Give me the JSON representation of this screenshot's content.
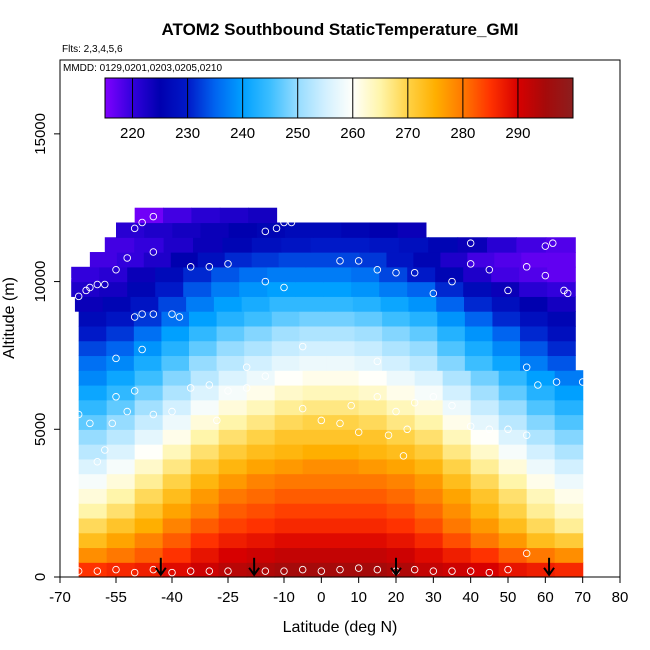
{
  "chart_data": {
    "type": "heatmap",
    "title": "ATOM2 Southbound StaticTemperature_GMI",
    "flights_label": "Flts: 2,3,4,5,6",
    "dates_label": "MMDD: 0129,0201,0203,0205,0210",
    "xlabel": "Latitude (deg N)",
    "ylabel": "Altitude (m)",
    "xlim": [
      -70,
      80
    ],
    "ylim": [
      0,
      17500
    ],
    "x_ticks": [
      -70,
      -55,
      -40,
      -25,
      -10,
      0,
      10,
      20,
      30,
      40,
      50,
      60,
      70,
      80
    ],
    "x_tick_labels": [
      "-70",
      "-55",
      "-40",
      "-25",
      "-10",
      "0",
      "10",
      "20",
      "30",
      "40",
      "50",
      "60",
      "70",
      "80"
    ],
    "y_ticks": [
      0,
      5000,
      10000,
      15000
    ],
    "y_tick_labels": [
      "0",
      "5000",
      "10000",
      "15000"
    ],
    "colorbar": {
      "range": [
        215,
        300
      ],
      "ticks": [
        220,
        230,
        240,
        250,
        260,
        270,
        280,
        290
      ],
      "tick_labels": [
        "220",
        "230",
        "240",
        "250",
        "260",
        "270",
        "280",
        "290"
      ]
    },
    "arrows_at_latitude": [
      -43,
      -18,
      20,
      61
    ],
    "layers": [
      {
        "alt_bottom": 0,
        "alt_top": 500,
        "lat_min": -65,
        "lat_max": 70,
        "temps": [
          285,
          286,
          287,
          289,
          291,
          293,
          294,
          295,
          295,
          295,
          295,
          294,
          292,
          291,
          290,
          288,
          287,
          286
        ]
      },
      {
        "alt_bottom": 500,
        "alt_top": 1000,
        "lat_min": -65,
        "lat_max": 70,
        "temps": [
          278,
          280,
          282,
          285,
          288,
          290,
          291,
          292,
          292,
          292,
          292,
          291,
          289,
          287,
          285,
          282,
          280,
          278
        ]
      },
      {
        "alt_bottom": 1000,
        "alt_top": 1500,
        "lat_min": -65,
        "lat_max": 70,
        "temps": [
          273,
          276,
          279,
          282,
          285,
          287,
          288,
          289,
          289,
          289,
          289,
          288,
          286,
          283,
          280,
          277,
          273,
          271
        ]
      },
      {
        "alt_bottom": 1500,
        "alt_top": 2000,
        "lat_min": -65,
        "lat_max": 70,
        "temps": [
          269,
          272,
          275,
          279,
          282,
          284,
          285,
          286,
          286,
          286,
          286,
          285,
          283,
          280,
          277,
          273,
          269,
          266
        ]
      },
      {
        "alt_bottom": 2000,
        "alt_top": 2500,
        "lat_min": -65,
        "lat_max": 70,
        "temps": [
          265,
          268,
          272,
          276,
          279,
          282,
          283,
          284,
          284,
          284,
          284,
          283,
          281,
          278,
          274,
          270,
          266,
          263
        ]
      },
      {
        "alt_bottom": 2500,
        "alt_top": 3000,
        "lat_min": -65,
        "lat_max": 70,
        "temps": [
          262,
          265,
          269,
          273,
          277,
          280,
          281,
          282,
          282,
          282,
          282,
          281,
          279,
          276,
          272,
          268,
          264,
          261
        ]
      },
      {
        "alt_bottom": 3000,
        "alt_top": 3500,
        "lat_min": -65,
        "lat_max": 70,
        "temps": [
          259,
          262,
          266,
          270,
          274,
          277,
          279,
          280,
          280,
          280,
          280,
          279,
          277,
          273,
          269,
          265,
          261,
          258
        ]
      },
      {
        "alt_bottom": 3500,
        "alt_top": 4000,
        "lat_min": -65,
        "lat_max": 70,
        "temps": [
          256,
          259,
          263,
          267,
          271,
          274,
          276,
          277,
          278,
          278,
          277,
          276,
          274,
          270,
          266,
          262,
          258,
          255
        ]
      },
      {
        "alt_bottom": 4000,
        "alt_top": 4500,
        "lat_min": -65,
        "lat_max": 70,
        "temps": [
          253,
          256,
          260,
          264,
          268,
          271,
          273,
          274,
          275,
          275,
          274,
          273,
          271,
          267,
          263,
          259,
          255,
          252
        ]
      },
      {
        "alt_bottom": 4500,
        "alt_top": 5000,
        "lat_min": -65,
        "lat_max": 70,
        "temps": [
          250,
          253,
          257,
          261,
          265,
          268,
          270,
          272,
          272,
          272,
          272,
          270,
          268,
          264,
          260,
          256,
          252,
          249
        ]
      },
      {
        "alt_bottom": 5000,
        "alt_top": 5500,
        "lat_min": -65,
        "lat_max": 70,
        "temps": [
          247,
          250,
          254,
          258,
          262,
          265,
          267,
          269,
          270,
          270,
          269,
          267,
          265,
          261,
          257,
          253,
          249,
          246
        ]
      },
      {
        "alt_bottom": 5500,
        "alt_top": 6000,
        "lat_min": -65,
        "lat_max": 70,
        "temps": [
          244,
          247,
          251,
          255,
          259,
          262,
          264,
          266,
          267,
          267,
          266,
          264,
          262,
          258,
          254,
          250,
          246,
          243
        ]
      },
      {
        "alt_bottom": 6000,
        "alt_top": 6500,
        "lat_min": -65,
        "lat_max": 70,
        "temps": [
          241,
          244,
          248,
          252,
          256,
          259,
          261,
          263,
          264,
          264,
          263,
          261,
          259,
          255,
          251,
          247,
          243,
          240
        ]
      },
      {
        "alt_bottom": 6500,
        "alt_top": 7000,
        "lat_min": -65,
        "lat_max": 70,
        "temps": [
          238,
          241,
          245,
          249,
          253,
          256,
          258,
          260,
          261,
          261,
          260,
          258,
          256,
          252,
          248,
          244,
          240,
          237
        ]
      },
      {
        "alt_bottom": 7000,
        "alt_top": 7500,
        "lat_min": -65,
        "lat_max": 68,
        "temps": [
          236,
          238,
          242,
          246,
          250,
          253,
          255,
          257,
          258,
          258,
          257,
          255,
          253,
          249,
          245,
          241,
          237,
          234
        ]
      },
      {
        "alt_bottom": 7500,
        "alt_top": 8000,
        "lat_min": -65,
        "lat_max": 68,
        "temps": [
          233,
          235,
          239,
          243,
          247,
          250,
          252,
          254,
          255,
          255,
          254,
          252,
          250,
          246,
          242,
          238,
          234,
          231
        ]
      },
      {
        "alt_bottom": 8000,
        "alt_top": 8500,
        "lat_min": -65,
        "lat_max": 68,
        "temps": [
          230,
          232,
          236,
          240,
          244,
          247,
          249,
          251,
          252,
          252,
          251,
          249,
          247,
          243,
          239,
          235,
          231,
          228
        ]
      },
      {
        "alt_bottom": 8500,
        "alt_top": 9000,
        "lat_min": -65,
        "lat_max": 68,
        "temps": [
          227,
          229,
          232,
          236,
          240,
          243,
          245,
          247,
          248,
          248,
          247,
          245,
          243,
          239,
          235,
          231,
          228,
          226
        ]
      },
      {
        "alt_bottom": 9000,
        "alt_top": 9500,
        "lat_min": -66,
        "lat_max": 68,
        "temps": [
          224,
          226,
          229,
          233,
          237,
          240,
          242,
          244,
          244,
          244,
          243,
          241,
          239,
          235,
          231,
          228,
          225,
          223
        ]
      },
      {
        "alt_bottom": 9500,
        "alt_top": 10000,
        "lat_min": -67,
        "lat_max": 68,
        "temps": [
          222,
          223,
          226,
          230,
          234,
          237,
          239,
          240,
          240,
          240,
          239,
          237,
          235,
          231,
          227,
          224,
          221,
          220
        ]
      },
      {
        "alt_bottom": 10000,
        "alt_top": 10500,
        "lat_min": -67,
        "lat_max": 68,
        "temps": [
          220,
          221,
          224,
          227,
          231,
          234,
          236,
          237,
          237,
          237,
          236,
          233,
          230,
          226,
          222,
          219,
          218,
          217
        ]
      },
      {
        "alt_bottom": 10500,
        "alt_top": 11000,
        "lat_min": -62,
        "lat_max": 68,
        "temps": [
          219,
          220,
          222,
          225,
          228,
          231,
          232,
          233,
          233,
          233,
          232,
          229,
          226,
          222,
          219,
          218,
          217,
          217
        ]
      },
      {
        "alt_bottom": 11000,
        "alt_top": 11500,
        "lat_min": -58,
        "lat_max": 68,
        "temps": [
          219,
          220,
          222,
          224,
          226,
          228,
          229,
          230,
          230,
          229,
          228,
          226,
          224,
          221,
          219,
          218
        ]
      },
      {
        "alt_bottom": 11500,
        "alt_top": 12000,
        "lat_min": -55,
        "lat_max": 28,
        "temps": [
          221,
          222,
          223,
          224,
          225,
          226,
          227,
          227,
          226,
          225,
          224
        ]
      },
      {
        "alt_bottom": 12000,
        "alt_top": 12500,
        "lat_min": -50,
        "lat_max": -12,
        "temps": [
          216,
          219,
          221,
          222,
          223
        ]
      }
    ],
    "observations": [
      [
        -65,
        200
      ],
      [
        -60,
        200
      ],
      [
        -55,
        250
      ],
      [
        -50,
        150
      ],
      [
        -45,
        250
      ],
      [
        -40,
        150
      ],
      [
        -35,
        200
      ],
      [
        -30,
        200
      ],
      [
        -25,
        200
      ],
      [
        -15,
        200
      ],
      [
        -10,
        200
      ],
      [
        -5,
        250
      ],
      [
        0,
        200
      ],
      [
        5,
        250
      ],
      [
        10,
        300
      ],
      [
        15,
        250
      ],
      [
        20,
        200
      ],
      [
        25,
        250
      ],
      [
        30,
        200
      ],
      [
        35,
        200
      ],
      [
        40,
        200
      ],
      [
        45,
        150
      ],
      [
        50,
        250
      ],
      [
        55,
        800
      ],
      [
        -60,
        3900
      ],
      [
        -58,
        4300
      ],
      [
        -56,
        5200
      ],
      [
        -55,
        6100
      ],
      [
        -52,
        5600
      ],
      [
        -50,
        6300
      ],
      [
        -45,
        5500
      ],
      [
        -40,
        5600
      ],
      [
        -35,
        6400
      ],
      [
        -30,
        6500
      ],
      [
        -28,
        5300
      ],
      [
        -25,
        6300
      ],
      [
        -20,
        6400
      ],
      [
        -15,
        6800
      ],
      [
        -5,
        5700
      ],
      [
        0,
        5300
      ],
      [
        5,
        5200
      ],
      [
        8,
        5800
      ],
      [
        10,
        4900
      ],
      [
        15,
        6100
      ],
      [
        18,
        4800
      ],
      [
        20,
        5600
      ],
      [
        22,
        4100
      ],
      [
        23,
        5000
      ],
      [
        25,
        5900
      ],
      [
        30,
        6100
      ],
      [
        35,
        5800
      ],
      [
        40,
        5100
      ],
      [
        45,
        5000
      ],
      [
        50,
        5000
      ],
      [
        55,
        4800
      ],
      [
        58,
        6500
      ],
      [
        63,
        6600
      ],
      [
        70,
        6600
      ],
      [
        -65,
        5500
      ],
      [
        -62,
        5200
      ],
      [
        -48,
        7700
      ],
      [
        -55,
        7400
      ],
      [
        -20,
        7100
      ],
      [
        -5,
        7800
      ],
      [
        15,
        7300
      ],
      [
        55,
        7100
      ],
      [
        -65,
        9500
      ],
      [
        -63,
        9700
      ],
      [
        -62,
        9800
      ],
      [
        -60,
        9900
      ],
      [
        -58,
        9900
      ],
      [
        -50,
        8800
      ],
      [
        -48,
        8900
      ],
      [
        -45,
        8900
      ],
      [
        -40,
        8900
      ],
      [
        -38,
        8800
      ],
      [
        -35,
        10500
      ],
      [
        -30,
        10500
      ],
      [
        -25,
        10600
      ],
      [
        -15,
        10000
      ],
      [
        -10,
        9800
      ],
      [
        5,
        10700
      ],
      [
        10,
        10700
      ],
      [
        15,
        10400
      ],
      [
        20,
        10300
      ],
      [
        25,
        10300
      ],
      [
        30,
        9600
      ],
      [
        35,
        10000
      ],
      [
        40,
        10600
      ],
      [
        45,
        10400
      ],
      [
        50,
        9700
      ],
      [
        55,
        10500
      ],
      [
        60,
        10200
      ],
      [
        65,
        9700
      ],
      [
        66,
        9600
      ],
      [
        -68,
        10100
      ],
      [
        -55,
        10400
      ],
      [
        -52,
        10800
      ],
      [
        -45,
        11000
      ],
      [
        40,
        11300
      ],
      [
        62,
        11300
      ],
      [
        60,
        11200
      ],
      [
        -50,
        11800
      ],
      [
        -48,
        12000
      ],
      [
        -45,
        12200
      ],
      [
        -15,
        11700
      ],
      [
        -12,
        11800
      ],
      [
        -10,
        12000
      ],
      [
        -8,
        12000
      ]
    ]
  }
}
